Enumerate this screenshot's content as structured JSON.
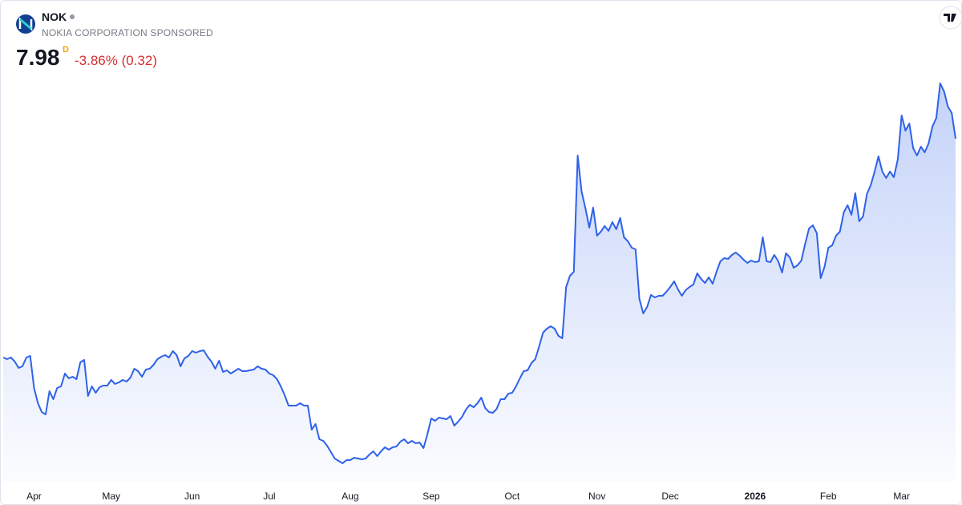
{
  "header": {
    "symbol": "NOK",
    "name": "NOKIA CORPORATION SPONSORED",
    "price": "7.98",
    "interval": "D",
    "change": "-3.86% (0.32)"
  },
  "chart_data": {
    "type": "area",
    "color": "#2f62e8",
    "values": [
      5.25,
      5.23,
      5.25,
      5.2,
      5.12,
      5.14,
      5.25,
      5.27,
      4.87,
      4.68,
      4.57,
      4.54,
      4.83,
      4.73,
      4.87,
      4.89,
      5.05,
      4.99,
      5.01,
      4.98,
      5.19,
      5.22,
      4.77,
      4.89,
      4.81,
      4.88,
      4.9,
      4.9,
      4.97,
      4.92,
      4.94,
      4.97,
      4.95,
      5.0,
      5.11,
      5.08,
      5.01,
      5.1,
      5.11,
      5.16,
      5.23,
      5.26,
      5.28,
      5.25,
      5.33,
      5.28,
      5.14,
      5.24,
      5.27,
      5.33,
      5.31,
      5.33,
      5.34,
      5.26,
      5.2,
      5.11,
      5.21,
      5.07,
      5.09,
      5.05,
      5.08,
      5.11,
      5.08,
      5.08,
      5.09,
      5.1,
      5.14,
      5.11,
      5.1,
      5.05,
      5.03,
      4.98,
      4.89,
      4.78,
      4.65,
      4.65,
      4.65,
      4.68,
      4.65,
      4.65,
      4.35,
      4.42,
      4.23,
      4.21,
      4.15,
      4.07,
      3.99,
      3.96,
      3.93,
      3.97,
      3.97,
      4.0,
      3.99,
      3.98,
      3.99,
      4.04,
      4.08,
      4.02,
      4.08,
      4.13,
      4.1,
      4.13,
      4.14,
      4.2,
      4.23,
      4.18,
      4.21,
      4.18,
      4.19,
      4.12,
      4.29,
      4.49,
      4.46,
      4.5,
      4.49,
      4.48,
      4.52,
      4.4,
      4.45,
      4.51,
      4.6,
      4.66,
      4.63,
      4.68,
      4.75,
      4.62,
      4.57,
      4.56,
      4.61,
      4.73,
      4.73,
      4.8,
      4.81,
      4.89,
      4.99,
      5.08,
      5.09,
      5.18,
      5.23,
      5.39,
      5.56,
      5.61,
      5.64,
      5.61,
      5.52,
      5.49,
      6.13,
      6.27,
      6.32,
      7.77,
      7.32,
      7.11,
      6.87,
      7.12,
      6.77,
      6.82,
      6.89,
      6.83,
      6.94,
      6.85,
      6.99,
      6.75,
      6.7,
      6.62,
      6.6,
      5.98,
      5.8,
      5.88,
      6.03,
      6.0,
      6.02,
      6.02,
      6.07,
      6.13,
      6.2,
      6.1,
      6.02,
      6.09,
      6.13,
      6.16,
      6.3,
      6.23,
      6.18,
      6.25,
      6.17,
      6.32,
      6.45,
      6.49,
      6.48,
      6.53,
      6.56,
      6.52,
      6.47,
      6.43,
      6.46,
      6.44,
      6.45,
      6.75,
      6.45,
      6.44,
      6.53,
      6.45,
      6.31,
      6.55,
      6.5,
      6.37,
      6.4,
      6.46,
      6.67,
      6.86,
      6.9,
      6.8,
      6.24,
      6.38,
      6.62,
      6.65,
      6.77,
      6.82,
      7.06,
      7.15,
      7.03,
      7.3,
      6.95,
      7.01,
      7.29,
      7.4,
      7.57,
      7.76,
      7.57,
      7.49,
      7.57,
      7.5,
      7.72,
      8.27,
      8.08,
      8.17,
      7.86,
      7.77,
      7.88,
      7.81,
      7.92,
      8.13,
      8.24,
      8.67,
      8.57,
      8.38,
      8.3,
      7.98
    ],
    "xlim": [
      0,
      247
    ],
    "xticks": [
      {
        "value": 8,
        "label": "Apr"
      },
      {
        "value": 28,
        "label": "May"
      },
      {
        "value": 49,
        "label": "Jun"
      },
      {
        "value": 69,
        "label": "Jul"
      },
      {
        "value": 90,
        "label": "Aug"
      },
      {
        "value": 111,
        "label": "Sep"
      },
      {
        "value": 132,
        "label": "Oct"
      },
      {
        "value": 154,
        "label": "Nov"
      },
      {
        "value": 173,
        "label": "Dec"
      },
      {
        "value": 195,
        "label": "2026"
      },
      {
        "value": 214,
        "label": "Feb"
      },
      {
        "value": 233,
        "label": "Mar"
      }
    ],
    "ylim": [
      3.4,
      9.7
    ]
  }
}
